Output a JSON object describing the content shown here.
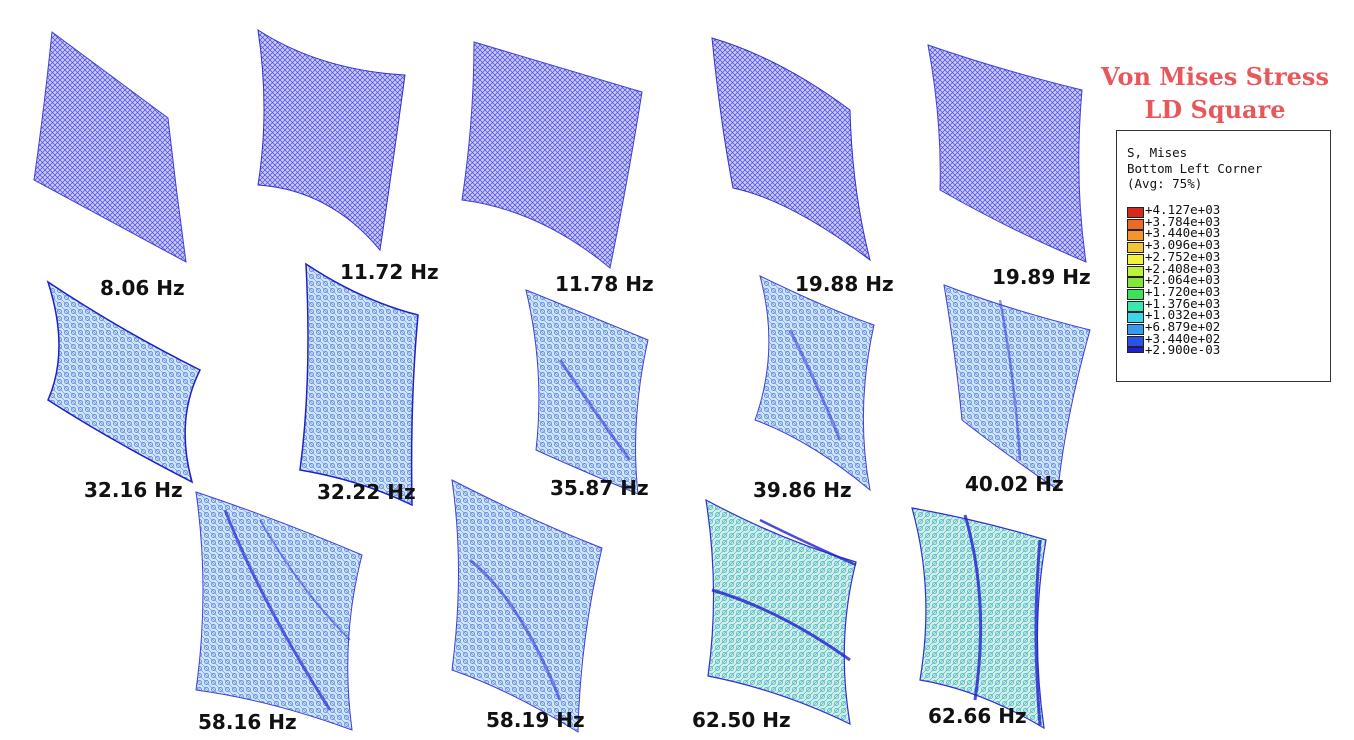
{
  "title": {
    "line1": "Von Mises Stress",
    "line2": "LD Square"
  },
  "legend": {
    "line1": "S, Mises",
    "line2": "Bottom Left Corner",
    "line3": "(Avg: 75%)",
    "levels": [
      {
        "label": "+4.127e+03",
        "color": "#d7281c"
      },
      {
        "label": "+3.784e+03",
        "color": "#ee6a24"
      },
      {
        "label": "+3.440e+03",
        "color": "#f2962c"
      },
      {
        "label": "+3.096e+03",
        "color": "#f3c33a"
      },
      {
        "label": "+2.752e+03",
        "color": "#f2f23c"
      },
      {
        "label": "+2.408e+03",
        "color": "#bff03a"
      },
      {
        "label": "+2.064e+03",
        "color": "#7fe83a"
      },
      {
        "label": "+1.720e+03",
        "color": "#3fe05a"
      },
      {
        "label": "+1.376e+03",
        "color": "#3ae6b0"
      },
      {
        "label": "+1.032e+03",
        "color": "#3cd6e8"
      },
      {
        "label": "+6.879e+02",
        "color": "#3a98ee"
      },
      {
        "label": "+3.440e+02",
        "color": "#2b52e8"
      },
      {
        "label": "+2.900e-03",
        "color": "#1f1fd8"
      }
    ]
  },
  "colors": {
    "title": "#e8585b",
    "mesh_low": "#3b3be0",
    "mesh_mid": "#5fc8e8",
    "mesh_high": "#7fe0a0"
  },
  "modes": [
    {
      "freq": "8.06 Hz"
    },
    {
      "freq": "11.72 Hz"
    },
    {
      "freq": "11.78 Hz"
    },
    {
      "freq": "19.88 Hz"
    },
    {
      "freq": "19.89 Hz"
    },
    {
      "freq": "32.16 Hz"
    },
    {
      "freq": "32.22 Hz"
    },
    {
      "freq": "35.87 Hz"
    },
    {
      "freq": "39.86 Hz"
    },
    {
      "freq": "40.02 Hz"
    },
    {
      "freq": "58.16 Hz"
    },
    {
      "freq": "58.19 Hz"
    },
    {
      "freq": "62.50 Hz"
    },
    {
      "freq": "62.66 Hz"
    }
  ]
}
